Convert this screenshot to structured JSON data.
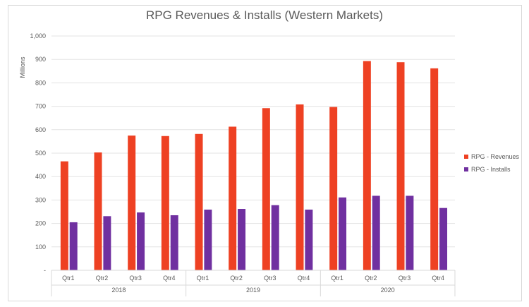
{
  "chart_data": {
    "type": "bar",
    "title": "RPG Revenues & Installs (Western Markets)",
    "ylabel": "Millions",
    "ylim": [
      0,
      1000
    ],
    "yticks": [
      "-",
      "100",
      "200",
      "300",
      "400",
      "500",
      "600",
      "700",
      "800",
      "900",
      "1,000"
    ],
    "grid": true,
    "legend_position": "right",
    "groups": [
      {
        "label": "2018",
        "categories": [
          "Qtr1",
          "Qtr2",
          "Qtr3",
          "Qtr4"
        ]
      },
      {
        "label": "2019",
        "categories": [
          "Qtr1",
          "Qtr2",
          "Qtr3",
          "Qtr4"
        ]
      },
      {
        "label": "2020",
        "categories": [
          "Qtr1",
          "Qtr2",
          "Qtr3",
          "Qtr4"
        ]
      }
    ],
    "series": [
      {
        "name": "RPG - Revenues",
        "color": "#ee4123",
        "values": [
          465,
          503,
          575,
          573,
          582,
          613,
          692,
          708,
          697,
          893,
          888,
          862
        ]
      },
      {
        "name": "RPG - Installs",
        "color": "#7030a0",
        "values": [
          205,
          231,
          247,
          235,
          259,
          262,
          278,
          259,
          311,
          318,
          318,
          266
        ]
      }
    ]
  }
}
